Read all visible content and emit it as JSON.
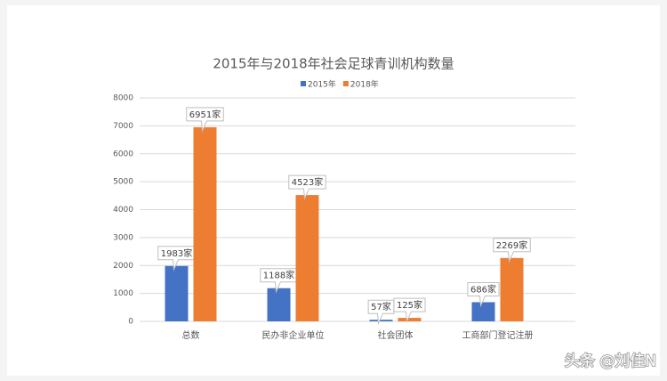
{
  "chart_data": {
    "type": "bar",
    "title": "2015年与2018年社会足球青训机构数量",
    "categories": [
      "总数",
      "民办非企业单位",
      "社会团体",
      "工商部门登记注册"
    ],
    "series": [
      {
        "name": "2015年",
        "color": "#4472c4",
        "values": [
          1983,
          1188,
          57,
          686
        ],
        "value_labels": [
          "1983家",
          "1188家",
          "57家",
          "686家"
        ]
      },
      {
        "name": "2018年",
        "color": "#ed7d31",
        "values": [
          6951,
          4523,
          125,
          2269
        ],
        "value_labels": [
          "6951家",
          "4523家",
          "125家",
          "2269家"
        ]
      }
    ],
    "ylim": [
      0,
      8000
    ],
    "yticks": [
      0,
      1000,
      2000,
      3000,
      4000,
      5000,
      6000,
      7000,
      8000
    ],
    "grid": true,
    "legend": "top"
  },
  "watermark": "头条 @刘佳N"
}
